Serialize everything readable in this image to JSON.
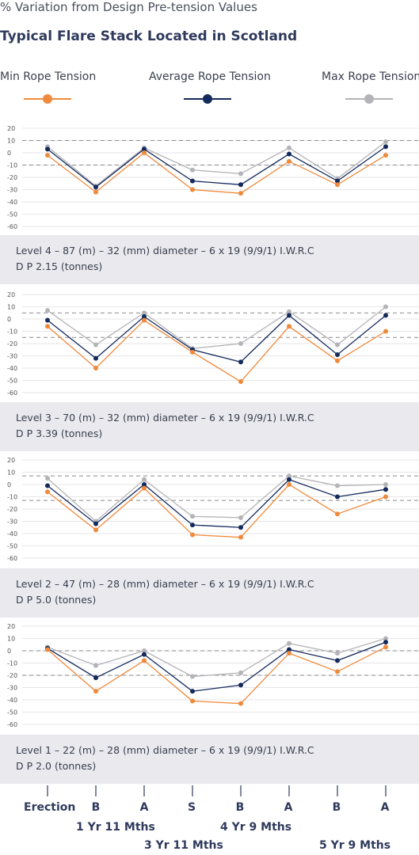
{
  "supertitle": "% Variation from Design Pre-tension Values",
  "title": "Typical Flare Stack Located in Scotland",
  "legend": {
    "min": "Min Rope Tension",
    "avg": "Average Rope Tension",
    "max": "Max Rope Tension"
  },
  "colors": {
    "min": "#ef8a3c",
    "avg": "#142a5c",
    "max": "#b4b4b8",
    "band": "#e9e9ee",
    "dash": "#8a8a8a"
  },
  "x_axis": {
    "ticks": [
      "Erection",
      "B",
      "A",
      "S",
      "B",
      "A",
      "B",
      "A"
    ],
    "groups": [
      "1 Yr 11 Mths",
      "3 Yr 11 Mths",
      "4 Yr 9 Mths",
      "5 Yr 9 Mths"
    ]
  },
  "chart_data": [
    {
      "type": "line",
      "caption_line1": "Level 4 – 87 (m) – 32 (mm) diameter – 6 x 19 (9/9/1) I.W.R.C",
      "caption_line2": "D P 2.15 (tonnes)",
      "y_ticks": [
        "20",
        "10",
        "0",
        "-10",
        "-20",
        "-30",
        "-40",
        "-50",
        "-60"
      ],
      "ylim": [
        -60,
        20
      ],
      "reference_lines": [
        10,
        -10
      ],
      "series": [
        {
          "name": "Min Rope Tension",
          "key": "min",
          "values": [
            -2,
            -32,
            0,
            -30,
            -33,
            -7,
            -26,
            -2
          ]
        },
        {
          "name": "Average Rope Tension",
          "key": "avg",
          "values": [
            3,
            -28,
            3,
            -23,
            -26,
            -1,
            -23,
            5
          ]
        },
        {
          "name": "Max Rope Tension",
          "key": "max",
          "values": [
            5,
            -27,
            4,
            -14,
            -17,
            4,
            -21,
            9
          ]
        }
      ]
    },
    {
      "type": "line",
      "caption_line1": "Level 3 – 70 (m) – 32 (mm) diameter – 6 x 19 (9/9/1) I.W.R.C",
      "caption_line2": "D P 3.39 (tonnes)",
      "y_ticks": [
        "20",
        "10",
        "0",
        "-10",
        "-20",
        "-30",
        "-40",
        "-50",
        "-60"
      ],
      "ylim": [
        -60,
        20
      ],
      "reference_lines": [
        5,
        -15
      ],
      "series": [
        {
          "name": "Min Rope Tension",
          "key": "min",
          "values": [
            -6,
            -40,
            -1,
            -27,
            -51,
            -6,
            -34,
            -10
          ]
        },
        {
          "name": "Average Rope Tension",
          "key": "avg",
          "values": [
            -1,
            -32,
            2,
            -25,
            -35,
            3,
            -29,
            3
          ]
        },
        {
          "name": "Max Rope Tension",
          "key": "max",
          "values": [
            7,
            -21,
            5,
            -24,
            -20,
            6,
            -21,
            10
          ]
        }
      ]
    },
    {
      "type": "line",
      "caption_line1": "Level 2 – 47 (m) – 28 (mm) diameter – 6 x 19 (9/9/1) I.W.R.C",
      "caption_line2": "D P 5.0 (tonnes)",
      "y_ticks": [
        "20",
        "10",
        "0",
        "-10",
        "-20",
        "-30",
        "-40",
        "-50",
        "-60"
      ],
      "ylim": [
        -60,
        20
      ],
      "reference_lines": [
        7,
        -13
      ],
      "series": [
        {
          "name": "Min Rope Tension",
          "key": "min",
          "values": [
            -6,
            -37,
            -3,
            -41,
            -43,
            0,
            -24,
            -10
          ]
        },
        {
          "name": "Average Rope Tension",
          "key": "avg",
          "values": [
            -1,
            -32,
            0,
            -33,
            -35,
            4,
            -10,
            -4
          ]
        },
        {
          "name": "Max Rope Tension",
          "key": "max",
          "values": [
            5,
            -30,
            4,
            -26,
            -27,
            7,
            -1,
            0
          ]
        }
      ]
    },
    {
      "type": "line",
      "caption_line1": "Level 1 – 22 (m) – 28 (mm) diameter – 6 x 19 (9/9/1) I.W.R.C",
      "caption_line2": "D P 2.0 (tonnes)",
      "y_ticks": [
        "20",
        "10",
        "0",
        "-10",
        "-20",
        "-30",
        "-40",
        "-50",
        "-60"
      ],
      "ylim": [
        -60,
        20
      ],
      "reference_lines": [
        0,
        -20
      ],
      "series": [
        {
          "name": "Min Rope Tension",
          "key": "min",
          "values": [
            1,
            -33,
            -8,
            -41,
            -43,
            -2,
            -17,
            3
          ]
        },
        {
          "name": "Average Rope Tension",
          "key": "avg",
          "values": [
            2,
            -22,
            -3,
            -33,
            -28,
            1,
            -8,
            7
          ]
        },
        {
          "name": "Max Rope Tension",
          "key": "max",
          "values": [
            3,
            -12,
            0,
            -21,
            -18,
            6,
            -2,
            10
          ]
        }
      ]
    }
  ]
}
